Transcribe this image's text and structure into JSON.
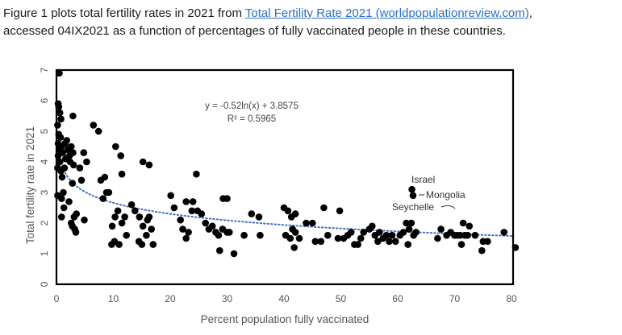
{
  "caption": {
    "before_link": "Figure 1 plots total fertility rates in 2021 from ",
    "link_text": "Total Fertility Rate 2021 (worldpopulationreview.com)",
    "after_link": ",",
    "line2": "accessed 04IX2021 as a function of percentages of fully vaccinated people in these countries."
  },
  "chart_data": {
    "type": "scatter",
    "title": "",
    "xlabel": "Percent population fully vaccinated",
    "ylabel": "Total fertility rate in 2021",
    "xlim": [
      0,
      80
    ],
    "ylim": [
      0,
      7
    ],
    "xticks": [
      0,
      10,
      20,
      30,
      40,
      50,
      60,
      70,
      80
    ],
    "yticks": [
      0,
      1,
      2,
      3,
      4,
      5,
      6,
      7
    ],
    "trendline": {
      "type": "log",
      "a": -0.52,
      "b": 3.8575,
      "equation": "y = -0.52ln(x) + 3.8575",
      "r2": "R² = 0.5965"
    },
    "annotations": [
      {
        "label": "Israel",
        "x": 62.5,
        "y": 2.9
      },
      {
        "label": "Mongolia",
        "x": 62.5,
        "y": 2.9
      },
      {
        "label": "Seychelle",
        "x": 70.5,
        "y": 2.45
      }
    ],
    "points": [
      [
        0.5,
        6.9
      ],
      [
        0.3,
        5.9
      ],
      [
        0.4,
        5.8
      ],
      [
        0.6,
        5.6
      ],
      [
        0.8,
        5.4
      ],
      [
        0.2,
        5.2
      ],
      [
        0.4,
        4.9
      ],
      [
        0.7,
        4.8
      ],
      [
        0.3,
        4.6
      ],
      [
        0.9,
        4.5
      ],
      [
        0.5,
        4.4
      ],
      [
        0.3,
        4.2
      ],
      [
        0.6,
        4.0
      ],
      [
        0.2,
        3.8
      ],
      [
        0.8,
        3.7
      ],
      [
        1.0,
        3.5
      ],
      [
        0.2,
        2.9
      ],
      [
        0.9,
        2.8
      ],
      [
        1.2,
        3.0
      ],
      [
        1.4,
        3.8
      ],
      [
        1.6,
        4.1
      ],
      [
        1.1,
        4.3
      ],
      [
        1.5,
        4.6
      ],
      [
        2.0,
        4.4
      ],
      [
        2.3,
        4.2
      ],
      [
        1.8,
        4.7
      ],
      [
        2.6,
        4.5
      ],
      [
        2.9,
        4.3
      ],
      [
        2.4,
        4.0
      ],
      [
        3.0,
        3.9
      ],
      [
        2.8,
        3.3
      ],
      [
        2.2,
        2.7
      ],
      [
        1.3,
        2.5
      ],
      [
        0.9,
        2.2
      ],
      [
        2.6,
        2.0
      ],
      [
        3.1,
        2.2
      ],
      [
        2.8,
        1.9
      ],
      [
        3.5,
        2.3
      ],
      [
        3.2,
        1.8
      ],
      [
        3.4,
        1.7
      ],
      [
        4.1,
        3.8
      ],
      [
        4.4,
        3.4
      ],
      [
        4.8,
        4.3
      ],
      [
        5.3,
        4.0
      ],
      [
        4.9,
        2.1
      ],
      [
        2.9,
        5.5
      ],
      [
        6.5,
        5.2
      ],
      [
        7.4,
        5.0
      ],
      [
        7.8,
        3.4
      ],
      [
        8.5,
        3.5
      ],
      [
        8.8,
        3.0
      ],
      [
        8.2,
        2.8
      ],
      [
        9.2,
        3.0
      ],
      [
        10.4,
        4.5
      ],
      [
        11.3,
        4.2
      ],
      [
        11.5,
        3.6
      ],
      [
        10.3,
        2.2
      ],
      [
        10.8,
        2.4
      ],
      [
        11.5,
        2.0
      ],
      [
        12.0,
        2.2
      ],
      [
        9.8,
        1.9
      ],
      [
        10.2,
        1.4
      ],
      [
        11.0,
        1.3
      ],
      [
        9.7,
        1.3
      ],
      [
        12.3,
        1.6
      ],
      [
        13.2,
        2.6
      ],
      [
        13.8,
        2.4
      ],
      [
        14.6,
        2.2
      ],
      [
        15.2,
        1.9
      ],
      [
        16.0,
        2.1
      ],
      [
        16.7,
        1.8
      ],
      [
        15.8,
        1.6
      ],
      [
        14.5,
        1.4
      ],
      [
        15.0,
        1.3
      ],
      [
        16.3,
        2.2
      ],
      [
        17.0,
        1.3
      ],
      [
        15.2,
        4.0
      ],
      [
        16.3,
        3.9
      ],
      [
        20.1,
        2.9
      ],
      [
        20.7,
        2.5
      ],
      [
        21.8,
        2.1
      ],
      [
        22.8,
        2.7
      ],
      [
        23.8,
        2.4
      ],
      [
        24.0,
        2.7
      ],
      [
        24.8,
        2.4
      ],
      [
        22.2,
        1.8
      ],
      [
        22.8,
        1.5
      ],
      [
        23.2,
        1.7
      ],
      [
        24.6,
        3.6
      ],
      [
        25.5,
        2.3
      ],
      [
        26.2,
        2.0
      ],
      [
        26.8,
        1.8
      ],
      [
        27.4,
        1.9
      ],
      [
        28.0,
        1.7
      ],
      [
        28.5,
        1.6
      ],
      [
        29.2,
        1.8
      ],
      [
        30.0,
        1.7
      ],
      [
        29.3,
        2.8
      ],
      [
        30.0,
        2.8
      ],
      [
        30.4,
        1.7
      ],
      [
        28.7,
        1.1
      ],
      [
        31.2,
        1.0
      ],
      [
        33.0,
        1.6
      ],
      [
        34.3,
        2.3
      ],
      [
        35.6,
        2.2
      ],
      [
        35.8,
        1.6
      ],
      [
        40.0,
        2.5
      ],
      [
        40.7,
        2.4
      ],
      [
        41.3,
        2.2
      ],
      [
        42.0,
        2.3
      ],
      [
        41.5,
        1.8
      ],
      [
        42.0,
        1.7
      ],
      [
        42.7,
        1.5
      ],
      [
        41.1,
        1.5
      ],
      [
        40.3,
        1.6
      ],
      [
        41.8,
        1.2
      ],
      [
        43.9,
        2.0
      ],
      [
        45.0,
        2.0
      ],
      [
        45.5,
        1.4
      ],
      [
        46.5,
        1.4
      ],
      [
        47.0,
        2.5
      ],
      [
        47.7,
        1.6
      ],
      [
        49.8,
        2.4
      ],
      [
        49.5,
        1.5
      ],
      [
        50.5,
        1.5
      ],
      [
        51.2,
        1.6
      ],
      [
        51.8,
        1.7
      ],
      [
        52.4,
        1.3
      ],
      [
        53.0,
        1.3
      ],
      [
        53.5,
        1.5
      ],
      [
        54.0,
        1.7
      ],
      [
        55.0,
        1.8
      ],
      [
        55.5,
        1.9
      ],
      [
        56.0,
        1.6
      ],
      [
        56.5,
        1.4
      ],
      [
        56.8,
        1.7
      ],
      [
        57.4,
        1.5
      ],
      [
        58.0,
        1.6
      ],
      [
        58.5,
        1.4
      ],
      [
        59.0,
        1.6
      ],
      [
        59.6,
        1.4
      ],
      [
        60.4,
        1.6
      ],
      [
        61.0,
        1.7
      ],
      [
        61.5,
        2.0
      ],
      [
        62.0,
        1.8
      ],
      [
        62.4,
        2.0
      ],
      [
        62.8,
        1.6
      ],
      [
        63.2,
        1.7
      ],
      [
        61.8,
        1.3
      ],
      [
        62.5,
        3.1
      ],
      [
        62.7,
        2.9
      ],
      [
        67.0,
        1.5
      ],
      [
        67.6,
        1.8
      ],
      [
        68.6,
        1.6
      ],
      [
        69.3,
        1.7
      ],
      [
        70.0,
        1.6
      ],
      [
        70.5,
        1.6
      ],
      [
        71.0,
        1.6
      ],
      [
        71.5,
        2.0
      ],
      [
        71.8,
        1.6
      ],
      [
        72.6,
        1.9
      ],
      [
        72.3,
        1.6
      ],
      [
        73.6,
        1.6
      ],
      [
        71.2,
        1.3
      ],
      [
        74.8,
        1.1
      ],
      [
        75.0,
        1.4
      ],
      [
        75.8,
        1.4
      ],
      [
        78.7,
        1.7
      ],
      [
        80.7,
        1.2
      ]
    ]
  }
}
